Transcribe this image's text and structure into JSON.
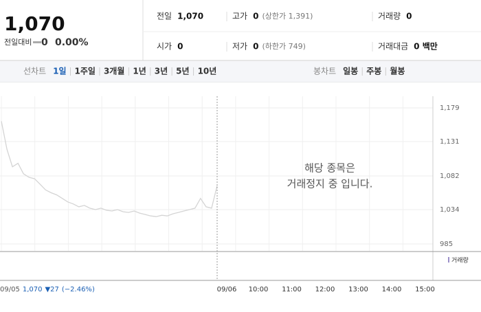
{
  "header": {
    "price": "1,070",
    "change_label": "전일대비",
    "change": "0",
    "change_pct": "0.00%",
    "stats": [
      {
        "label": "전일",
        "value": "1,070"
      },
      {
        "label": "고가",
        "value": "0",
        "note": "(상한가 1,391)"
      },
      {
        "label": "거래량",
        "value": "0"
      },
      {
        "label": "시가",
        "value": "0"
      },
      {
        "label": "저가",
        "value": "0",
        "note": "(하한가 749)"
      },
      {
        "label": "거래대금",
        "value": "0 백만"
      }
    ]
  },
  "tabs": {
    "line_label": "선차트",
    "line_periods": [
      "1일",
      "1주일",
      "3개월",
      "1년",
      "3년",
      "5년",
      "10년"
    ],
    "candle_label": "봉차트",
    "candle_periods": [
      "일봉",
      "주봉",
      "월봉"
    ]
  },
  "chart_data": {
    "type": "line",
    "color": "#d4d4d4",
    "values": [
      1160,
      1120,
      1095,
      1100,
      1085,
      1080,
      1078,
      1070,
      1062,
      1058,
      1055,
      1050,
      1045,
      1042,
      1038,
      1040,
      1036,
      1034,
      1036,
      1033,
      1032,
      1034,
      1031,
      1030,
      1032,
      1029,
      1027,
      1025,
      1024,
      1026,
      1025,
      1028,
      1030,
      1032,
      1034,
      1036,
      1050,
      1038,
      1036,
      1068
    ],
    "ylim": [
      985,
      1179
    ],
    "yticks": [
      985,
      {
        "value": 1034,
        "label": "1,034"
      },
      {
        "value": 1082,
        "label": "1,082"
      },
      {
        "value": 1131,
        "label": "1,131"
      },
      {
        "value": 1179,
        "label": "1,179"
      }
    ],
    "xticks": [
      "09/06",
      "10:00",
      "11:00",
      "12:00",
      "13:00",
      "14:00",
      "15:00"
    ],
    "volume_label": "거래량",
    "footer": {
      "date": "09/05",
      "price": "1,070",
      "change": "▼27",
      "change_pct": "(−2.46%)"
    },
    "notice": [
      "해당 종목은",
      "거래정지 중 입니다."
    ]
  }
}
